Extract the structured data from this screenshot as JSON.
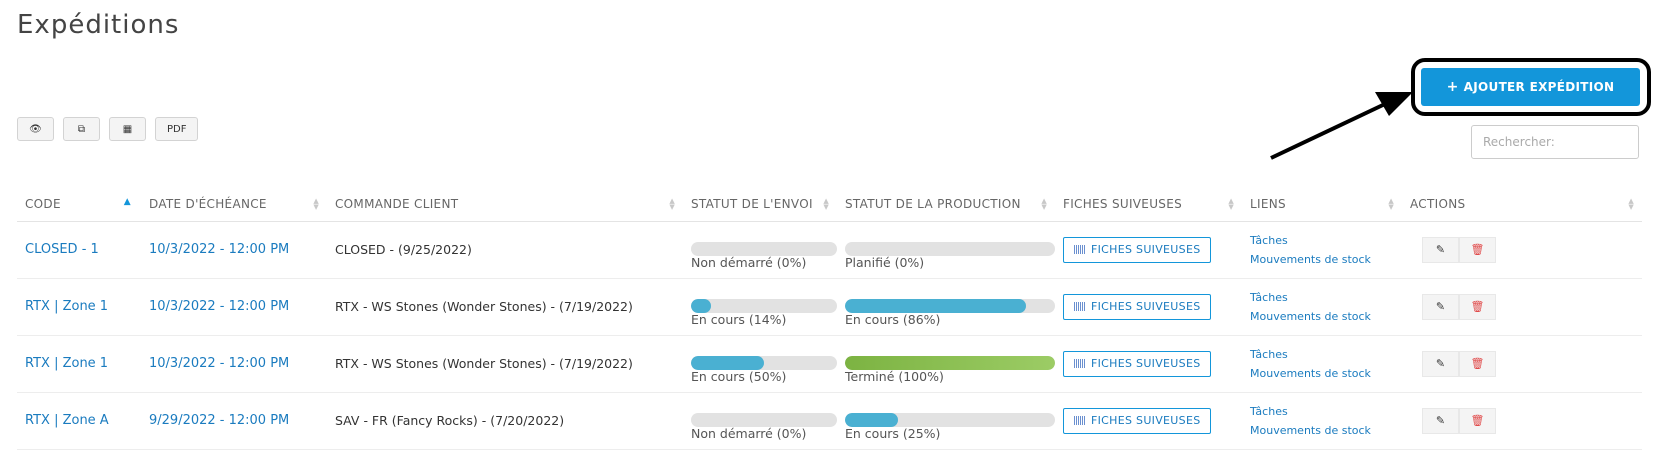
{
  "page": {
    "title": "Expéditions"
  },
  "add_button": {
    "label": "AJOUTER EXPÉDITION",
    "icon": "plus-icon"
  },
  "toolbar": {
    "buttons": [
      {
        "icon": "eye-icon",
        "label": "👁"
      },
      {
        "icon": "copy-icon",
        "label": "⧉"
      },
      {
        "icon": "table-icon",
        "label": "▦"
      },
      {
        "icon": "pdf",
        "label": "PDF"
      }
    ]
  },
  "search": {
    "placeholder": "Rechercher:",
    "value": ""
  },
  "table": {
    "headers": [
      "CODE",
      "DATE D'ÉCHÉANCE",
      "COMMANDE CLIENT",
      "STATUT DE L'ENVOI",
      "STATUT DE LA PRODUCTION",
      "FICHES SUIVEUSES",
      "LIENS",
      "ACTIONS"
    ],
    "rows": [
      {
        "code": "CLOSED - 1",
        "date": "10/3/2022 - 12:00 PM",
        "commande": "CLOSED - (9/25/2022)",
        "envoi": {
          "label": "Non démarré (0%)",
          "percent": 0,
          "color": "#4ab0d2"
        },
        "production": {
          "label": "Planifié (0%)",
          "percent": 0,
          "color": "#4ab0d2"
        },
        "fiches": "FICHES SUIVEUSES",
        "liens": [
          "Tâches",
          "Mouvements de stock"
        ]
      },
      {
        "code": "RTX | Zone 1",
        "date": "10/3/2022 - 12:00 PM",
        "commande": "RTX - WS Stones (Wonder Stones) - (7/19/2022)",
        "envoi": {
          "label": "En cours (14%)",
          "percent": 14,
          "color": "#4ab0d2"
        },
        "production": {
          "label": "En cours (86%)",
          "percent": 86,
          "color": "#4ab0d2"
        },
        "fiches": "FICHES SUIVEUSES",
        "liens": [
          "Tâches",
          "Mouvements de stock"
        ]
      },
      {
        "code": "RTX | Zone 1",
        "date": "10/3/2022 - 12:00 PM",
        "commande": "RTX - WS Stones (Wonder Stones) - (7/19/2022)",
        "envoi": {
          "label": "En cours (50%)",
          "percent": 50,
          "color": "#4ab0d2"
        },
        "production": {
          "label": "Terminé (100%)",
          "percent": 100,
          "color": "#8bc34a"
        },
        "fiches": "FICHES SUIVEUSES",
        "liens": [
          "Tâches",
          "Mouvements de stock"
        ]
      },
      {
        "code": "RTX | Zone A",
        "date": "9/29/2022 - 12:00 PM",
        "commande": "SAV - FR (Fancy Rocks) - (7/20/2022)",
        "envoi": {
          "label": "Non démarré (0%)",
          "percent": 0,
          "color": "#4ab0d2"
        },
        "production": {
          "label": "En cours (25%)",
          "percent": 25,
          "color": "#4ab0d2"
        },
        "fiches": "FICHES SUIVEUSES",
        "liens": [
          "Tâches",
          "Mouvements de stock"
        ]
      }
    ]
  },
  "colors": {
    "accent": "#1396da",
    "link": "#1a7bbf",
    "progress": "#4ab0d2",
    "done": "#8bc34a",
    "delete": "#e04848"
  }
}
